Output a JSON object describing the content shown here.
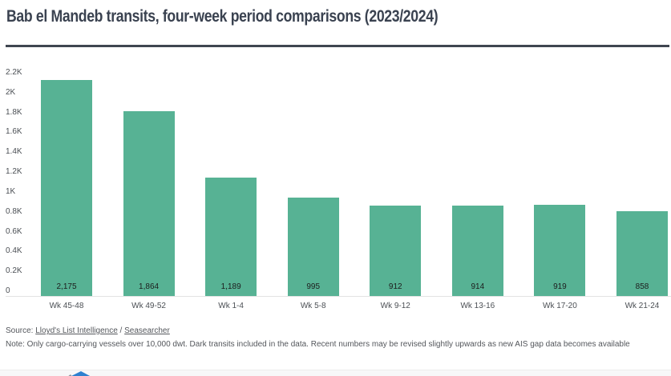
{
  "title": "Bab el Mandeb transits, four-week period comparisons (2023/2024)",
  "chart_data": {
    "type": "bar",
    "title": "Bab el Mandeb transits, four-week period comparisons (2023/2024)",
    "categories": [
      "Wk 45-48",
      "Wk 49-52",
      "Wk 1-4",
      "Wk 5-8",
      "Wk 9-12",
      "Wk 13-16",
      "Wk 17-20",
      "Wk 21-24"
    ],
    "values": [
      2175,
      1864,
      1189,
      995,
      912,
      914,
      919,
      858
    ],
    "value_labels": [
      "2,175",
      "1,864",
      "1,189",
      "995",
      "912",
      "914",
      "919",
      "858"
    ],
    "xlabel": "",
    "ylabel": "",
    "ylim": [
      0,
      2377
    ],
    "yticks": [
      {
        "value": 0,
        "label": "0"
      },
      {
        "value": 200,
        "label": "0.2K"
      },
      {
        "value": 400,
        "label": "0.4K"
      },
      {
        "value": 600,
        "label": "0.6K"
      },
      {
        "value": 800,
        "label": "0.8K"
      },
      {
        "value": 1000,
        "label": "1K"
      },
      {
        "value": 1200,
        "label": "1.2K"
      },
      {
        "value": 1400,
        "label": "1.4K"
      },
      {
        "value": 1600,
        "label": "1.6K"
      },
      {
        "value": 1800,
        "label": "1.8K"
      },
      {
        "value": 2000,
        "label": "2K"
      },
      {
        "value": 2200,
        "label": "2.2K"
      }
    ],
    "grid": false,
    "legend": false,
    "bar_color": "#57b294"
  },
  "footer": {
    "source_prefix": "Source: ",
    "source_link_1": "Lloyd's List Intelligence",
    "source_separator": " / ",
    "source_link_2": "Seasearcher",
    "note": "Note: Only cargo-carrying vessels over 10,000 dwt. Dark transits included in the data. Recent numbers may be revised slightly upwards as new AIS gap data becomes available"
  },
  "colors": {
    "bar": "#57b294",
    "title_text": "#3a4250",
    "rule": "#3f4650",
    "axis_text": "#4b4f54",
    "value_text": "#1d1d1d",
    "footer_text": "#54575c",
    "logo_blue": "#2e80cf",
    "logo_gray": "#8a8f96"
  }
}
